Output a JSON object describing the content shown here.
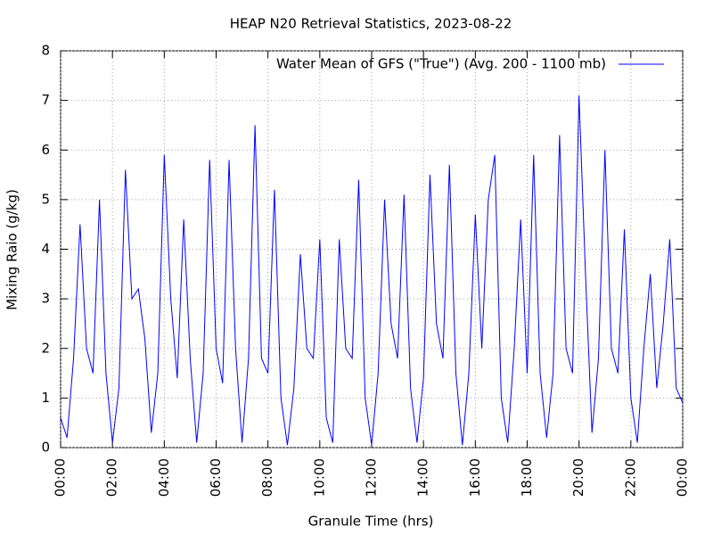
{
  "chart_data": {
    "type": "line",
    "title": "HEAP N20 Retrieval Statistics, 2023-08-22",
    "xlabel": "Granule Time (hrs)",
    "ylabel": "Mixing Raio (g/kg)",
    "xlim": [
      0,
      24
    ],
    "ylim": [
      0,
      8
    ],
    "xticks": [
      {
        "value": 0,
        "label": "00:00"
      },
      {
        "value": 2,
        "label": "02:00"
      },
      {
        "value": 4,
        "label": "04:00"
      },
      {
        "value": 6,
        "label": "06:00"
      },
      {
        "value": 8,
        "label": "08:00"
      },
      {
        "value": 10,
        "label": "10:00"
      },
      {
        "value": 12,
        "label": "12:00"
      },
      {
        "value": 14,
        "label": "14:00"
      },
      {
        "value": 16,
        "label": "16:00"
      },
      {
        "value": 18,
        "label": "18:00"
      },
      {
        "value": 20,
        "label": "20:00"
      },
      {
        "value": 22,
        "label": "22:00"
      },
      {
        "value": 24,
        "label": "00:00"
      }
    ],
    "yticks": [
      0,
      1,
      2,
      3,
      4,
      5,
      6,
      7,
      8
    ],
    "grid": true,
    "legend": "top-right",
    "x": [
      0,
      0.25,
      0.5,
      0.75,
      1,
      1.25,
      1.5,
      1.75,
      2,
      2.25,
      2.5,
      2.75,
      3,
      3.25,
      3.5,
      3.75,
      4,
      4.25,
      4.5,
      4.75,
      5,
      5.25,
      5.5,
      5.75,
      6,
      6.25,
      6.5,
      6.75,
      7,
      7.25,
      7.5,
      7.75,
      8,
      8.25,
      8.5,
      8.75,
      9,
      9.25,
      9.5,
      9.75,
      10,
      10.25,
      10.5,
      10.75,
      11,
      11.25,
      11.5,
      11.75,
      12,
      12.25,
      12.5,
      12.75,
      13,
      13.25,
      13.5,
      13.75,
      14,
      14.25,
      14.5,
      14.75,
      15,
      15.25,
      15.5,
      15.75,
      16,
      16.25,
      16.5,
      16.75,
      17,
      17.25,
      17.5,
      17.75,
      18,
      18.25,
      18.5,
      18.75,
      19,
      19.25,
      19.5,
      19.75,
      20,
      20.25,
      20.5,
      20.75,
      21,
      21.25,
      21.5,
      21.75,
      22,
      22.25,
      22.5,
      22.75,
      23,
      23.25,
      23.5,
      23.75,
      24
    ],
    "series": [
      {
        "name": "Water Mean of GFS (\"True\") (Avg. 200 - 1100 mb)",
        "color": "#0000ff",
        "values": [
          0.6,
          0.2,
          1.8,
          4.5,
          2.0,
          1.5,
          5.0,
          1.5,
          0.1,
          1.2,
          5.6,
          3.0,
          3.2,
          2.2,
          0.3,
          1.5,
          5.9,
          3.0,
          1.4,
          4.6,
          1.8,
          0.1,
          1.5,
          5.8,
          2.0,
          1.3,
          5.8,
          2.0,
          0.1,
          1.8,
          6.5,
          1.8,
          1.5,
          5.2,
          1.0,
          0.05,
          1.2,
          3.9,
          2.0,
          1.8,
          4.2,
          0.6,
          0.1,
          4.2,
          2.0,
          1.8,
          5.4,
          1.0,
          0.05,
          1.5,
          5.0,
          2.5,
          1.8,
          5.1,
          1.2,
          0.1,
          1.4,
          5.5,
          2.5,
          1.8,
          5.7,
          1.5,
          0.05,
          1.5,
          4.7,
          2.0,
          5.0,
          5.9,
          1.0,
          0.1,
          2.0,
          4.6,
          1.5,
          5.9,
          1.5,
          0.2,
          1.5,
          6.3,
          2.0,
          1.5,
          7.1,
          3.5,
          0.3,
          1.8,
          6.0,
          2.0,
          1.5,
          4.4,
          1.0,
          0.1,
          2.0,
          3.5,
          1.2,
          2.5,
          4.2,
          1.2,
          0.9
        ]
      }
    ]
  }
}
